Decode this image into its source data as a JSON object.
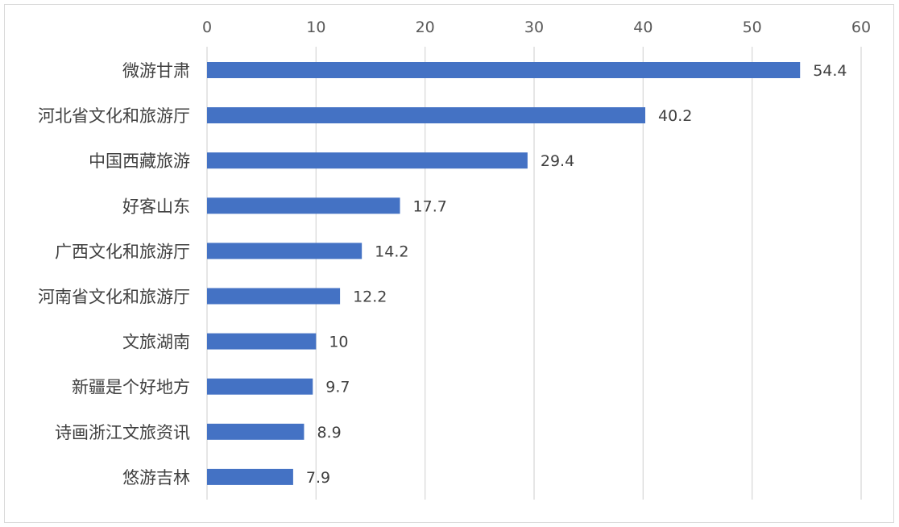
{
  "chart_data": {
    "type": "bar",
    "orientation": "horizontal",
    "title": "",
    "xlabel": "",
    "ylabel": "",
    "xlim": [
      0,
      60
    ],
    "xticks": [
      "0",
      "10",
      "20",
      "30",
      "40",
      "50",
      "60"
    ],
    "x_axis_position": "top",
    "grid": true,
    "legend": "none",
    "categories": [
      "微游甘肃",
      "河北省文化和旅游厅",
      "中国西藏旅游",
      "好客山东",
      "广西文化和旅游厅",
      "河南省文化和旅游厅",
      "文旅湖南",
      "新疆是个好地方",
      "诗画浙江文旅资讯",
      "悠游吉林"
    ],
    "values": [
      54.4,
      40.2,
      29.4,
      17.7,
      14.2,
      12.2,
      10,
      9.7,
      8.9,
      7.9
    ],
    "value_labels": [
      "54.4",
      "40.2",
      "29.4",
      "17.7",
      "14.2",
      "12.2",
      "10",
      "9.7",
      "8.9",
      "7.9"
    ],
    "bar_color": "#4472c4",
    "grid_color": "#d9d9d9"
  }
}
